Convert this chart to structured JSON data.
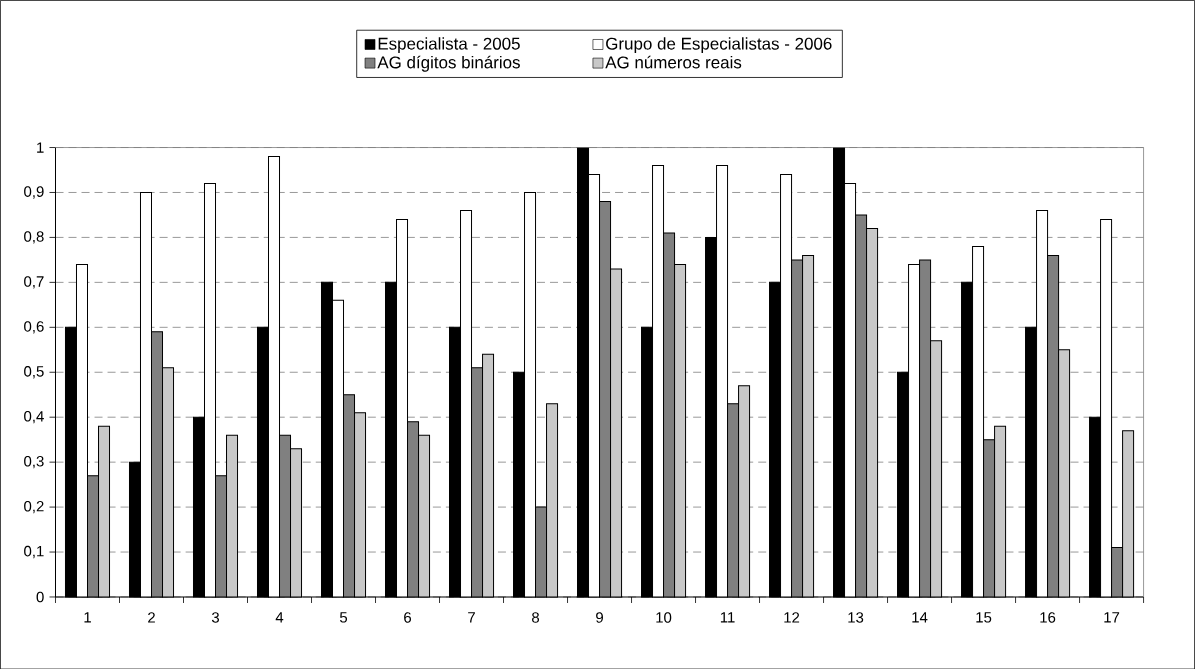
{
  "chart_data": {
    "type": "bar",
    "categories": [
      "1",
      "2",
      "3",
      "4",
      "5",
      "6",
      "7",
      "8",
      "9",
      "10",
      "11",
      "12",
      "13",
      "14",
      "15",
      "16",
      "17"
    ],
    "series": [
      {
        "name": "Especialista - 2005",
        "color": "#000000",
        "values": [
          0.6,
          0.3,
          0.4,
          0.6,
          0.7,
          0.7,
          0.6,
          0.5,
          1.0,
          0.6,
          0.8,
          0.7,
          1.0,
          0.5,
          0.7,
          0.6,
          0.4
        ]
      },
      {
        "name": "Grupo de Especialistas - 2006",
        "color": "#ffffff",
        "values": [
          0.74,
          0.9,
          0.92,
          0.98,
          0.66,
          0.84,
          0.86,
          0.9,
          0.94,
          0.96,
          0.96,
          0.94,
          0.92,
          0.74,
          0.78,
          0.86,
          0.84
        ]
      },
      {
        "name": "AG dígitos binários",
        "color": "#808080",
        "values": [
          0.27,
          0.59,
          0.27,
          0.36,
          0.45,
          0.39,
          0.51,
          0.2,
          0.88,
          0.81,
          0.43,
          0.75,
          0.85,
          0.75,
          0.35,
          0.76,
          0.11
        ]
      },
      {
        "name": "AG números reais",
        "color": "#c8c8c8",
        "values": [
          0.38,
          0.51,
          0.36,
          0.33,
          0.41,
          0.36,
          0.54,
          0.43,
          0.73,
          0.74,
          0.47,
          0.76,
          0.82,
          0.57,
          0.38,
          0.55,
          0.37
        ]
      }
    ],
    "ylim": [
      0,
      1
    ],
    "yticks": [
      {
        "value": 0,
        "label": "0"
      },
      {
        "value": 0.1,
        "label": "0,1"
      },
      {
        "value": 0.2,
        "label": "0,2"
      },
      {
        "value": 0.3,
        "label": "0,3"
      },
      {
        "value": 0.4,
        "label": "0,4"
      },
      {
        "value": 0.5,
        "label": "0,5"
      },
      {
        "value": 0.6,
        "label": "0,6"
      },
      {
        "value": 0.7,
        "label": "0,7"
      },
      {
        "value": 0.8,
        "label": "0,8"
      },
      {
        "value": 0.9,
        "label": "0,9"
      },
      {
        "value": 1,
        "label": "1"
      }
    ],
    "grid": "y",
    "legend": "top"
  }
}
